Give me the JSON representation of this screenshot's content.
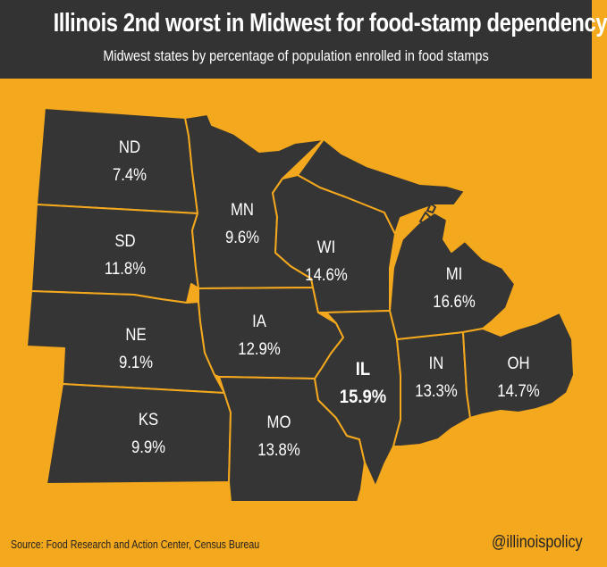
{
  "header": {
    "title": "Illinois 2nd worst in Midwest for food-stamp dependency",
    "subtitle": "Midwest states by percentage of population enrolled in food stamps"
  },
  "colors": {
    "background": "#f4a81d",
    "state_fill": "#353535",
    "header_bg": "#333333"
  },
  "states": [
    {
      "abbr": "ND",
      "value": "7.4%"
    },
    {
      "abbr": "SD",
      "value": "11.8%"
    },
    {
      "abbr": "NE",
      "value": "9.1%"
    },
    {
      "abbr": "KS",
      "value": "9.9%"
    },
    {
      "abbr": "MN",
      "value": "9.6%"
    },
    {
      "abbr": "IA",
      "value": "12.9%"
    },
    {
      "abbr": "MO",
      "value": "13.8%"
    },
    {
      "abbr": "WI",
      "value": "14.6%"
    },
    {
      "abbr": "IL",
      "value": "15.9%"
    },
    {
      "abbr": "IN",
      "value": "13.3%"
    },
    {
      "abbr": "MI",
      "value": "16.6%"
    },
    {
      "abbr": "OH",
      "value": "14.7%"
    }
  ],
  "footer": {
    "source": "Source: Food Research and Action Center, Census Bureau",
    "handle": "@illinoispolicy"
  }
}
